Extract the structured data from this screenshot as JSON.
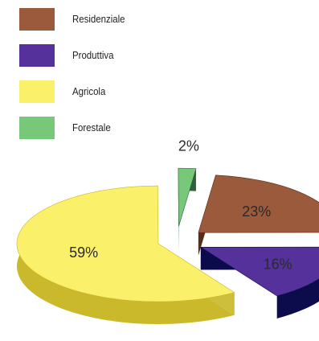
{
  "chart_data": {
    "type": "pie",
    "title": "",
    "legend_position": "top-left",
    "slices": [
      {
        "name": "Residenziale",
        "value": 23,
        "label": "23%",
        "color": "#9c5a3c",
        "side_color": "#5a2e1a"
      },
      {
        "name": "Produttiva",
        "value": 16,
        "label": "16%",
        "color": "#54319b",
        "side_color": "#0c0c4c"
      },
      {
        "name": "Agricola",
        "value": 59,
        "label": "59%",
        "color": "#fbf06a",
        "side_color": "#c9b92b"
      },
      {
        "name": "Forestale",
        "value": 2,
        "label": "2%",
        "color": "#78c87a",
        "side_color": "#2f5f3a"
      }
    ]
  }
}
